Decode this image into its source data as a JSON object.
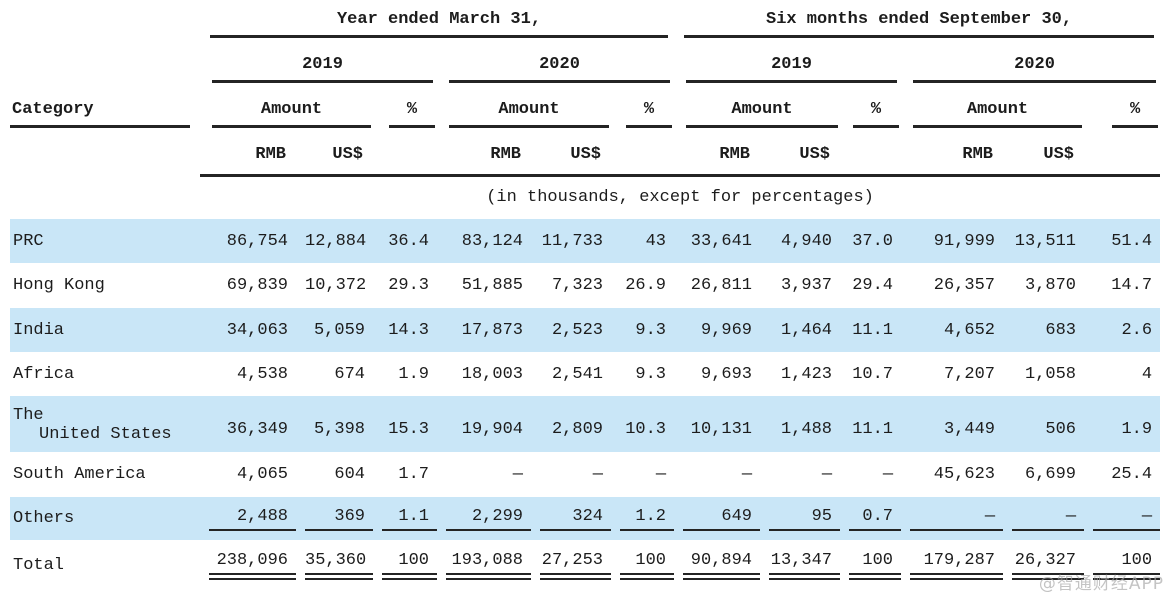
{
  "header": {
    "period_fy": "Year ended March 31,",
    "period_6m": "Six months ended September 30,",
    "years_fy": [
      "2019",
      "2020"
    ],
    "years_6m": [
      "2019",
      "2020"
    ],
    "category_label": "Category",
    "amount_label": "Amount",
    "percent_label": "%",
    "currency_labels": [
      "RMB",
      "US$"
    ],
    "note": "(in thousands, except for percentages)"
  },
  "table": {
    "column_groups": [
      "FY2019",
      "FY2020",
      "6M2019",
      "6M2020"
    ],
    "columns_per_group": [
      "RMB",
      "US$",
      "%"
    ],
    "rows": [
      {
        "label": "PRC",
        "stripe": true,
        "values": [
          "86,754",
          "12,884",
          "36.4",
          "83,124",
          "11,733",
          "43",
          "33,641",
          "4,940",
          "37.0",
          "91,999",
          "13,511",
          "51.4"
        ]
      },
      {
        "label": "Hong Kong",
        "stripe": false,
        "values": [
          "69,839",
          "10,372",
          "29.3",
          "51,885",
          "7,323",
          "26.9",
          "26,811",
          "3,937",
          "29.4",
          "26,357",
          "3,870",
          "14.7"
        ]
      },
      {
        "label": "India",
        "stripe": true,
        "values": [
          "34,063",
          "5,059",
          "14.3",
          "17,873",
          "2,523",
          "9.3",
          "9,969",
          "1,464",
          "11.1",
          "4,652",
          "683",
          "2.6"
        ]
      },
      {
        "label": "Africa",
        "stripe": false,
        "values": [
          "4,538",
          "674",
          "1.9",
          "18,003",
          "2,541",
          "9.3",
          "9,693",
          "1,423",
          "10.7",
          "7,207",
          "1,058",
          "4"
        ]
      },
      {
        "label_lines": [
          "The",
          "United States"
        ],
        "stripe": true,
        "tall": true,
        "values": [
          "36,349",
          "5,398",
          "15.3",
          "19,904",
          "2,809",
          "10.3",
          "10,131",
          "1,488",
          "11.1",
          "3,449",
          "506",
          "1.9"
        ]
      },
      {
        "label": "South America",
        "stripe": false,
        "values": [
          "4,065",
          "604",
          "1.7",
          "—",
          "—",
          "—",
          "—",
          "—",
          "—",
          "45,623",
          "6,699",
          "25.4"
        ]
      },
      {
        "label": "Others",
        "stripe": true,
        "rule": "single",
        "values": [
          "2,488",
          "369",
          "1.1",
          "2,299",
          "324",
          "1.2",
          "649",
          "95",
          "0.7",
          "—",
          "—",
          "—"
        ]
      },
      {
        "label": "Total",
        "stripe": false,
        "rule": "double",
        "total": true,
        "values": [
          "238,096",
          "35,360",
          "100",
          "193,088",
          "27,253",
          "100",
          "90,894",
          "13,347",
          "100",
          "179,287",
          "26,327",
          "100"
        ]
      }
    ]
  },
  "watermark": "@智通财经APP",
  "colors": {
    "stripe": "#c9e6f7",
    "rule": "#242424",
    "text": "#1c1c1c",
    "watermark": "#a5a5a5"
  }
}
